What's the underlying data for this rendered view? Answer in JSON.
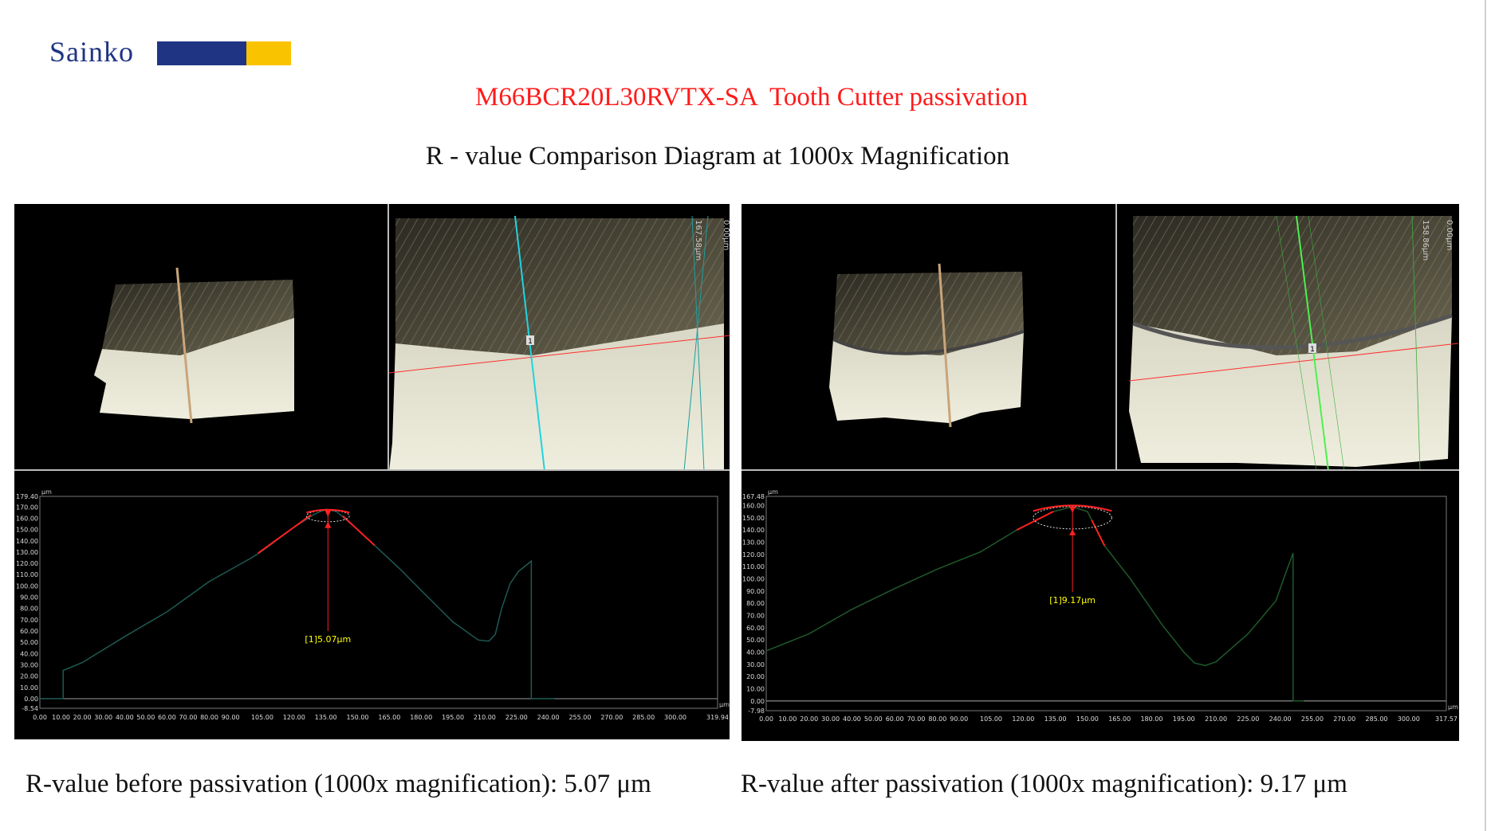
{
  "header": {
    "logo_text": "Sainko",
    "brand_colors": {
      "blue": "#1f3584",
      "yellow": "#f9c300"
    },
    "title": "M66BCR20L30RVTX-SA  Tooth Cutter passivation",
    "subtitle": "R - value Comparison Diagram at 1000x Magnification"
  },
  "panels": {
    "before": {
      "scan_labels": [
        "167.58μm",
        "0.00μm"
      ],
      "measure_marker": "1"
    },
    "after": {
      "scan_labels": [
        "158.86μm",
        "0.00μm"
      ],
      "measure_marker": "1"
    }
  },
  "chart_data": [
    {
      "type": "line",
      "unit_y": "μm",
      "unit_x": "μm",
      "ylim": [
        -8.54,
        179.4
      ],
      "xlim": [
        0,
        319.94
      ],
      "y_ticks": [
        "179.40",
        "170.00",
        "160.00",
        "150.00",
        "140.00",
        "130.00",
        "120.00",
        "110.00",
        "100.00",
        "90.00",
        "80.00",
        "70.00",
        "60.00",
        "50.00",
        "40.00",
        "30.00",
        "20.00",
        "10.00",
        "0.00",
        "-8.54"
      ],
      "x_ticks": [
        "0.00",
        "10.00",
        "20.00",
        "30.00",
        "40.00",
        "50.00",
        "60.00",
        "70.00",
        "80.00",
        "90.00",
        "105.00",
        "120.00",
        "135.00",
        "150.00",
        "165.00",
        "180.00",
        "195.00",
        "210.00",
        "225.00",
        "240.00",
        "255.00",
        "270.00",
        "285.00",
        "300.00",
        "319.94"
      ],
      "profile": [
        [
          0,
          0
        ],
        [
          11,
          0
        ],
        [
          11,
          25
        ],
        [
          20,
          32
        ],
        [
          40,
          55
        ],
        [
          60,
          77
        ],
        [
          80,
          104
        ],
        [
          100,
          125
        ],
        [
          105,
          131
        ],
        [
          120,
          152
        ],
        [
          130,
          164
        ],
        [
          135,
          168
        ],
        [
          140,
          166
        ],
        [
          150,
          150
        ],
        [
          158,
          136
        ],
        [
          170,
          115
        ],
        [
          180,
          96
        ],
        [
          195,
          68
        ],
        [
          207,
          52
        ],
        [
          212,
          51
        ],
        [
          215,
          57
        ],
        [
          218,
          80
        ],
        [
          222,
          102
        ],
        [
          226,
          113
        ],
        [
          232,
          122
        ],
        [
          232,
          0
        ],
        [
          243,
          0
        ]
      ],
      "fit_segments": [
        [
          [
            103,
            129
          ],
          [
            128,
            163
          ]
        ],
        [
          [
            143,
            162
          ],
          [
            158,
            136
          ]
        ]
      ],
      "circle": {
        "cx": 136,
        "cy": 162,
        "r": 5.07
      },
      "annotation": "[1]5.07μm",
      "annotation_xy": [
        136,
        50
      ],
      "colors": {
        "profile": "#1d5a52",
        "fit": "#ff2020",
        "annotation": "#ffff00"
      }
    },
    {
      "type": "line",
      "unit_y": "μm",
      "unit_x": "μm",
      "ylim": [
        -7.98,
        167.48
      ],
      "xlim": [
        0,
        317.57
      ],
      "y_ticks": [
        "167.48",
        "160.00",
        "150.00",
        "140.00",
        "130.00",
        "120.00",
        "110.00",
        "100.00",
        "90.00",
        "80.00",
        "70.00",
        "60.00",
        "50.00",
        "40.00",
        "30.00",
        "20.00",
        "10.00",
        "0.00",
        "-7.98"
      ],
      "x_ticks": [
        "0.00",
        "10.00",
        "20.00",
        "30.00",
        "40.00",
        "50.00",
        "60.00",
        "70.00",
        "80.00",
        "90.00",
        "105.00",
        "120.00",
        "135.00",
        "150.00",
        "165.00",
        "180.00",
        "195.00",
        "210.00",
        "225.00",
        "240.00",
        "255.00",
        "270.00",
        "285.00",
        "300.00",
        "317.57"
      ],
      "profile": [
        [
          0,
          41
        ],
        [
          20,
          55
        ],
        [
          40,
          75
        ],
        [
          60,
          92
        ],
        [
          80,
          108
        ],
        [
          100,
          122
        ],
        [
          117,
          140
        ],
        [
          134,
          155
        ],
        [
          143,
          159
        ],
        [
          150,
          155
        ],
        [
          152,
          148
        ],
        [
          158,
          127
        ],
        [
          170,
          100
        ],
        [
          185,
          62
        ],
        [
          195,
          40
        ],
        [
          200,
          31
        ],
        [
          205,
          29
        ],
        [
          210,
          32
        ],
        [
          225,
          55
        ],
        [
          238,
          82
        ],
        [
          240,
          92
        ],
        [
          242,
          102
        ],
        [
          246,
          121
        ],
        [
          246,
          0
        ],
        [
          251,
          0
        ]
      ],
      "fit_segments": [
        [
          [
            117,
            140
          ],
          [
            134,
            155
          ]
        ],
        [
          [
            152,
            148
          ],
          [
            158,
            127
          ]
        ]
      ],
      "circle": {
        "cx": 143,
        "cy": 150,
        "r": 9.17
      },
      "annotation": "[1]9.17μm",
      "annotation_xy": [
        143,
        80
      ],
      "colors": {
        "profile": "#1f5a2a",
        "fit": "#ff2020",
        "annotation": "#ffff00"
      }
    }
  ],
  "captions": {
    "before": "R-value before passivation (1000x magnification): 5.07 μm",
    "after": "R-value after passivation (1000x magnification): 9.17 μm"
  }
}
